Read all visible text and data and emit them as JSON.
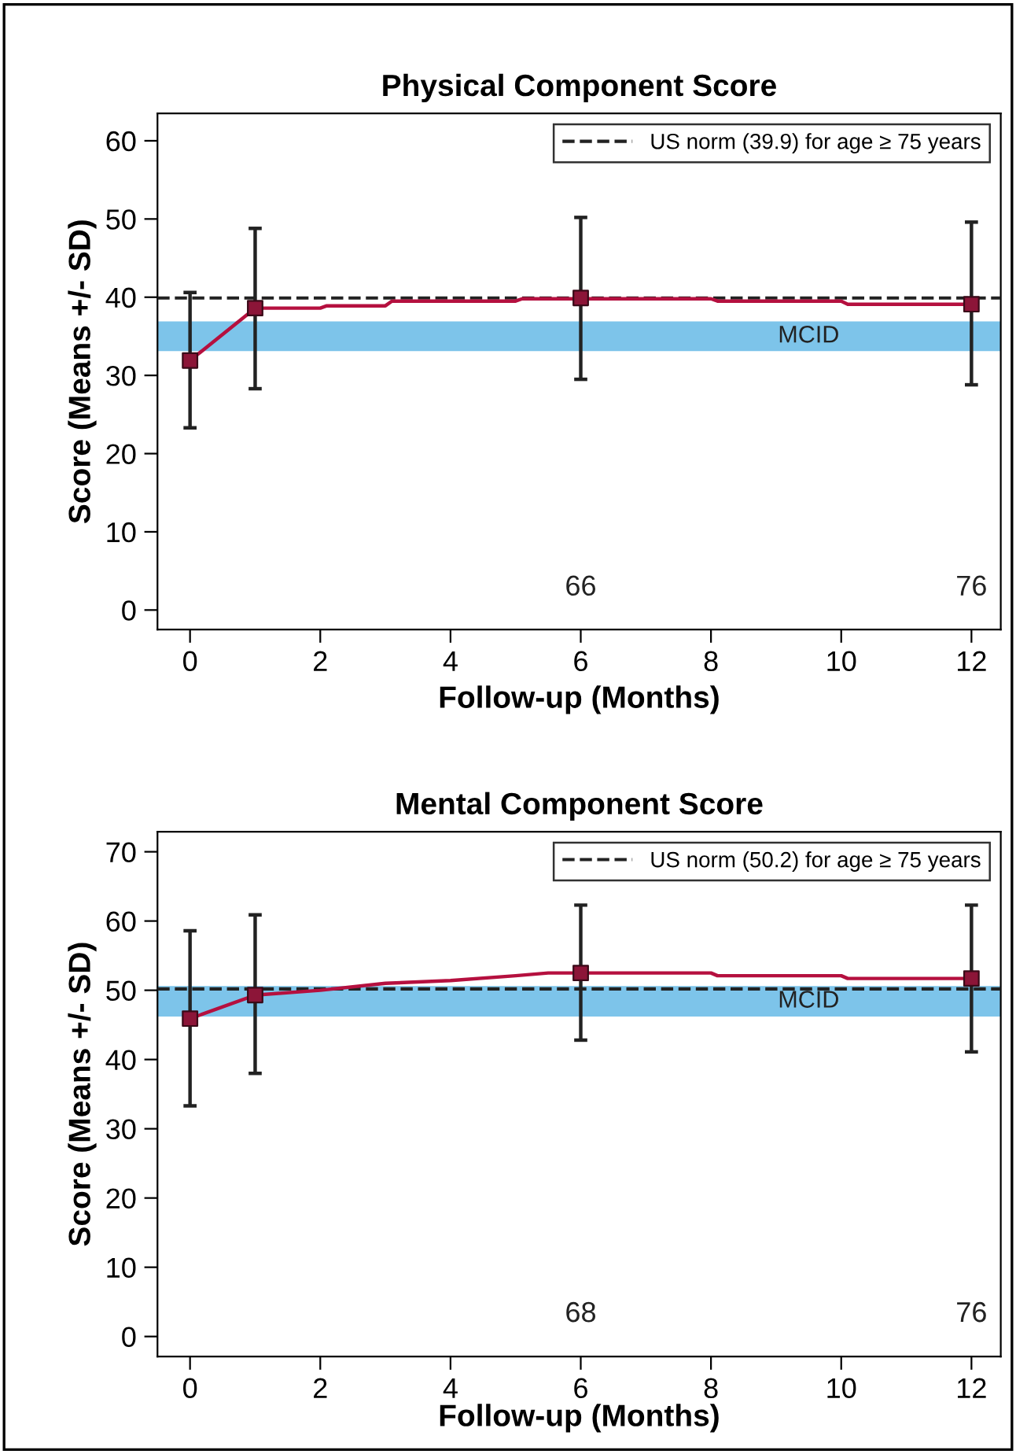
{
  "chart_data": [
    {
      "type": "line",
      "title": "Physical Component Score",
      "xlabel": "Follow-up (Months)",
      "ylabel": "Score (Means +/- SD)",
      "xlim": [
        -0.5,
        12.45
      ],
      "ylim": [
        -2.5,
        63.5
      ],
      "xticks": [
        0,
        2,
        4,
        6,
        8,
        10,
        12
      ],
      "yticks": [
        0,
        10,
        20,
        30,
        40,
        50,
        60
      ],
      "grid": false,
      "legend": "top right",
      "series": [
        {
          "color": "#b5103f",
          "marker": "none",
          "x": [
            0,
            1,
            2,
            2.1,
            3,
            3.1,
            5,
            5.1,
            8,
            8.1,
            10,
            10.1,
            12
          ],
          "values": [
            31.9,
            38.6,
            38.6,
            38.9,
            38.9,
            39.5,
            39.5,
            39.8,
            39.8,
            39.5,
            39.5,
            39.1,
            39.1
          ]
        },
        {
          "type": "scatter",
          "color": "#8c1538",
          "marker": "square",
          "x": [
            0,
            1,
            6,
            12
          ],
          "values": [
            31.9,
            38.6,
            39.9,
            39.1
          ],
          "errors": [
            [
              23.3,
              40.6
            ],
            [
              28.3,
              48.8
            ],
            [
              29.5,
              50.2
            ],
            [
              28.8,
              49.6
            ]
          ]
        }
      ],
      "ref_lines": [
        {
          "axis": "y",
          "value": 39.9,
          "label": "US norm (39.9) for age ≥ 75 years",
          "color": "#222222",
          "line_style": "dashed"
        }
      ],
      "bands": [
        {
          "axis": "y",
          "from": 33.1,
          "to": 36.9,
          "label": "MCID",
          "color": "#7dc4ea"
        }
      ],
      "annotations": [
        "66",
        "76"
      ]
    },
    {
      "type": "line",
      "title": "Mental Component Score",
      "xlabel": "Follow-up (Months)",
      "ylabel": "Score (Means +/- SD)",
      "xlim": [
        -0.5,
        12.45
      ],
      "ylim": [
        -2.9,
        72.9
      ],
      "xticks": [
        0,
        2,
        4,
        6,
        8,
        10,
        12
      ],
      "yticks": [
        0,
        10,
        20,
        30,
        40,
        50,
        60,
        70
      ],
      "grid": false,
      "legend": "top right",
      "series": [
        {
          "color": "#b5103f",
          "marker": "none",
          "x": [
            0,
            1,
            2,
            3,
            4,
            5,
            5.5,
            6,
            8,
            8.1,
            10,
            10.1,
            12
          ],
          "values": [
            45.9,
            49.3,
            50.0,
            51.0,
            51.4,
            52.1,
            52.5,
            52.5,
            52.5,
            52.1,
            52.1,
            51.7,
            51.7
          ]
        },
        {
          "type": "scatter",
          "color": "#8c1538",
          "marker": "square",
          "x": [
            0,
            1,
            6,
            12
          ],
          "values": [
            45.9,
            49.3,
            52.5,
            51.7
          ],
          "errors": [
            [
              33.3,
              58.6
            ],
            [
              38.0,
              60.9
            ],
            [
              42.8,
              62.3
            ],
            [
              41.1,
              62.3
            ]
          ]
        }
      ],
      "ref_lines": [
        {
          "axis": "y",
          "value": 50.2,
          "label": "US norm (50.2) for age ≥ 75 years",
          "color": "#222222",
          "line_style": "dashed"
        }
      ],
      "bands": [
        {
          "axis": "y",
          "from": 46.2,
          "to": 50.6,
          "label": "MCID",
          "color": "#7dc4ea"
        }
      ],
      "annotations": [
        "68",
        "76"
      ]
    }
  ]
}
